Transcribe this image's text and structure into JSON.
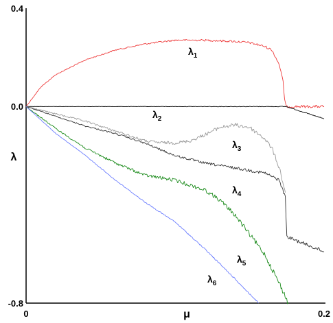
{
  "chart_data": {
    "type": "line",
    "title": "",
    "xlabel": "μ",
    "ylabel": "λ",
    "xlim": [
      0,
      0.2
    ],
    "ylim": [
      -0.8,
      0.4
    ],
    "xticks": [
      "0",
      "0.2"
    ],
    "yticks": [
      "0.4",
      "0.0",
      "-0.8"
    ],
    "grid": false,
    "legend": "none",
    "series": [
      {
        "name": "λ1",
        "color": "#ee3b3b",
        "x": [
          0,
          0.01,
          0.02,
          0.04,
          0.06,
          0.08,
          0.1,
          0.12,
          0.14,
          0.15,
          0.16,
          0.165,
          0.17,
          0.1725,
          0.1735,
          0.1745,
          0.2
        ],
        "y": [
          0,
          0.08,
          0.13,
          0.19,
          0.23,
          0.255,
          0.27,
          0.27,
          0.265,
          0.26,
          0.245,
          0.23,
          0.17,
          0.1,
          0.03,
          0,
          0
        ]
      },
      {
        "name": "λ2",
        "color": "#000000",
        "x": [
          0,
          0.05,
          0.1,
          0.15,
          0.1745,
          0.2
        ],
        "y": [
          0,
          0,
          0,
          0,
          0,
          -0.05
        ]
      },
      {
        "name": "λ3",
        "color": "#999999",
        "x": [
          0,
          0.02,
          0.04,
          0.06,
          0.08,
          0.09,
          0.1,
          0.11,
          0.12,
          0.13,
          0.14,
          0.15,
          0.16,
          0.165,
          0.17,
          0.174
        ],
        "y": [
          0,
          -0.03,
          -0.06,
          -0.1,
          -0.14,
          -0.147,
          -0.148,
          -0.14,
          -0.115,
          -0.085,
          -0.075,
          -0.085,
          -0.13,
          -0.17,
          -0.25,
          -0.35
        ]
      },
      {
        "name": "λ4",
        "color": "#333333",
        "x": [
          0,
          0.02,
          0.04,
          0.06,
          0.08,
          0.1,
          0.12,
          0.14,
          0.16,
          0.17,
          0.174,
          0.175,
          0.2
        ],
        "y": [
          0,
          -0.04,
          -0.08,
          -0.11,
          -0.15,
          -0.2,
          -0.23,
          -0.25,
          -0.27,
          -0.3,
          -0.37,
          -0.53,
          -0.59
        ]
      },
      {
        "name": "λ5",
        "color": "#1a8a1a",
        "x": [
          0,
          0.02,
          0.04,
          0.06,
          0.08,
          0.1,
          0.12,
          0.13,
          0.14,
          0.15,
          0.16,
          0.17,
          0.176
        ],
        "y": [
          0,
          -0.09,
          -0.17,
          -0.23,
          -0.28,
          -0.3,
          -0.34,
          -0.38,
          -0.44,
          -0.52,
          -0.6,
          -0.72,
          -0.8
        ]
      },
      {
        "name": "λ6",
        "color": "#6b7dff",
        "x": [
          0,
          0.02,
          0.04,
          0.06,
          0.08,
          0.1,
          0.12,
          0.14,
          0.156
        ],
        "y": [
          0,
          -0.11,
          -0.2,
          -0.3,
          -0.39,
          -0.47,
          -0.58,
          -0.7,
          -0.8
        ]
      }
    ]
  },
  "labels": {
    "l1": "λ1",
    "l2": "λ2",
    "l3": "λ3",
    "l4": "λ4",
    "l5": "λ5",
    "l6": "λ6"
  }
}
